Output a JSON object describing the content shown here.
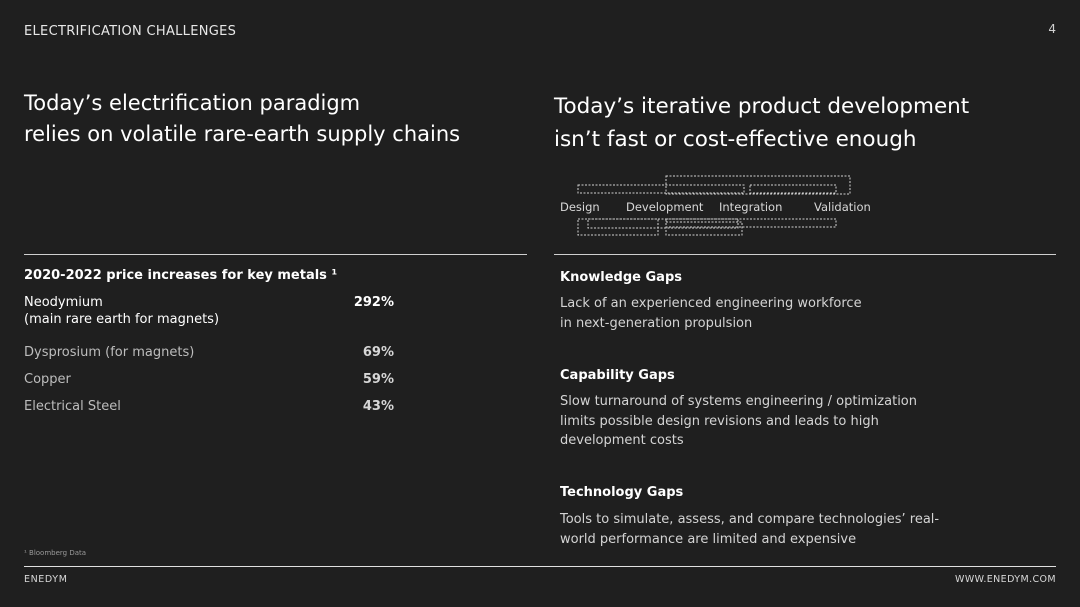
{
  "header": {
    "section_label": "ELECTRIFICATION CHALLENGES",
    "page_number": "4"
  },
  "left": {
    "headline_line1": "Today’s electrification paradigm",
    "headline_line2": "relies on volatile rare-earth supply chains",
    "table_title": "2020-2022 price increases for key metals ¹",
    "rows": [
      {
        "metal": "Neodymium",
        "note": "(main rare earth for magnets)",
        "value": "292%"
      },
      {
        "metal": "Dysprosium (for magnets)",
        "value": "69%"
      },
      {
        "metal": "Copper",
        "value": "59%"
      },
      {
        "metal": "Electrical Steel",
        "value": "43%"
      }
    ],
    "footnote": "¹ Bloomberg Data"
  },
  "right": {
    "headline_line1": "Today’s iterative product development",
    "headline_line2": "isn’t fast or cost-effective enough",
    "phases": [
      "Design",
      "Development",
      "Integration",
      "Validation"
    ],
    "gaps": [
      {
        "title": "Knowledge Gaps",
        "lines": [
          "Lack of an experienced engineering workforce",
          "in next-generation propulsion"
        ]
      },
      {
        "title": "Capability Gaps",
        "lines": [
          "Slow turnaround of systems engineering / optimization",
          "limits possible design revisions and leads to high",
          "development costs"
        ]
      },
      {
        "title": "Technology Gaps",
        "lines": [
          "Tools to simulate, assess, and compare technologies’ real-",
          "world performance are limited and expensive"
        ]
      }
    ]
  },
  "footer": {
    "brand": "ENEDYM",
    "url": "WWW.ENEDYM.COM"
  },
  "colors": {
    "background": "#1f1f1f",
    "text": "#ffffff",
    "muted_text": "#bdbdbd",
    "rule": "#cfcfcf"
  }
}
